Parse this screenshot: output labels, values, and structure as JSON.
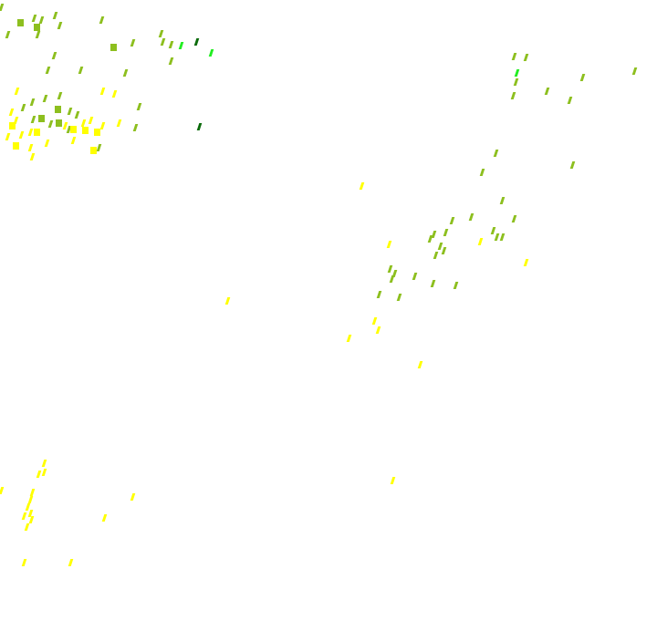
{
  "map": {
    "background": "#ffffff",
    "legend_colors": {
      "olive": "#8dbf1f",
      "yellow": "#ffff00",
      "bright_green": "#22ee22",
      "dark_green": "#0b6b0b"
    }
  }
}
